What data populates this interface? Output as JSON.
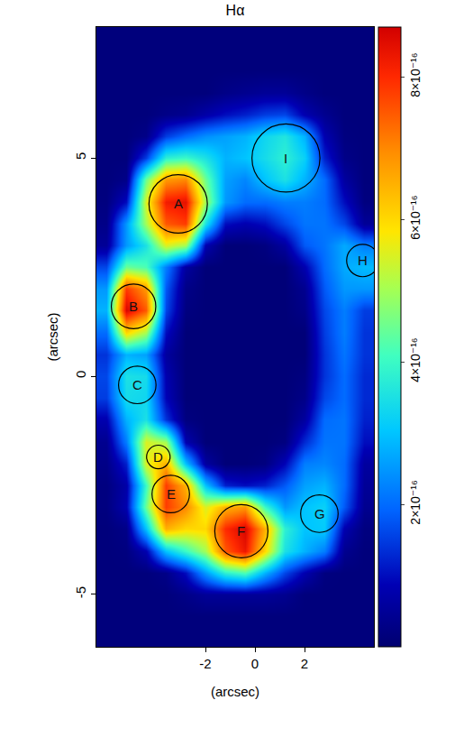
{
  "chart_data": {
    "type": "heatmap",
    "title": "Hα",
    "x_label": "(arcsec)",
    "y_label": "(arcsec)",
    "grid": false,
    "x": [
      -6.0,
      -5.2,
      -4.4,
      -3.6,
      -2.8,
      -2.0,
      -1.2,
      -0.4,
      0.4,
      1.2,
      2.0,
      2.8,
      3.6,
      4.4
    ],
    "y": [
      -6.0,
      -5.5,
      -5.0,
      -4.5,
      -4.0,
      -3.5,
      -3.0,
      -2.5,
      -2.0,
      -1.5,
      -1.0,
      -0.5,
      0.0,
      0.5,
      1.0,
      1.5,
      2.0,
      2.5,
      3.0,
      3.5,
      4.0,
      4.5,
      5.0,
      5.5,
      6.0,
      6.5,
      7.0,
      7.5,
      8.0
    ],
    "z": [
      [
        1.5e-17,
        1.5e-17,
        1.5e-17,
        1.5e-17,
        1.5e-17,
        1.5e-17,
        1.5e-17,
        1.5e-17,
        1.5e-17,
        1.5e-17,
        1.5e-17,
        1.5e-17,
        1.5e-17,
        1.5e-17
      ],
      [
        1.5e-17,
        1.5e-17,
        1.5e-17,
        1.5e-17,
        1.5e-17,
        1.5e-17,
        1.5e-17,
        1.5e-17,
        1.5e-17,
        1.5e-17,
        1.5e-17,
        1.5e-17,
        1.5e-17,
        1.5e-17
      ],
      [
        1.5e-17,
        1.5e-17,
        1.5e-17,
        1.5e-17,
        3e-17,
        5e-17,
        5e-17,
        5e-17,
        5e-17,
        4e-17,
        1.5e-17,
        1.5e-17,
        1.5e-17,
        1.5e-17
      ],
      [
        1.5e-17,
        1.5e-17,
        1.5e-17,
        3e-17,
        1e-16,
        2.5e-16,
        3.8e-16,
        4.2e-16,
        2.8e-16,
        1.6e-16,
        8e-17,
        2e-17,
        1.5e-17,
        1.5e-17
      ],
      [
        1.5e-17,
        2e-17,
        8e-17,
        3e-16,
        4e-16,
        5e-16,
        7.5e-16,
        8.3e-16,
        6e-16,
        3.5e-16,
        2.8e-16,
        2.2e-16,
        4e-17,
        1.5e-17
      ],
      [
        1.5e-17,
        3e-17,
        3e-16,
        6.5e-16,
        6e-16,
        6e-16,
        8e-16,
        8.6e-16,
        6.5e-16,
        3.8e-16,
        3e-16,
        3.1e-16,
        8e-17,
        2e-17
      ],
      [
        2e-17,
        8e-17,
        4.5e-16,
        7.8e-16,
        7e-16,
        5.5e-16,
        6.5e-16,
        6.8e-16,
        4e-16,
        2.5e-16,
        3e-16,
        3.2e-16,
        1.8e-16,
        4e-17
      ],
      [
        2e-17,
        7e-17,
        4e-16,
        7.8e-16,
        6.5e-16,
        3e-16,
        1.2e-16,
        1e-16,
        1.2e-16,
        1.8e-16,
        2.6e-16,
        2.8e-16,
        2e-16,
        5e-17
      ],
      [
        3e-17,
        1.2e-16,
        5.5e-16,
        6.5e-16,
        3e-16,
        6e-17,
        1e-17,
        1e-17,
        2e-17,
        9e-17,
        2.2e-16,
        2.3e-16,
        2e-16,
        6e-17
      ],
      [
        4e-17,
        2.2e-16,
        5.5e-16,
        5e-16,
        8e-17,
        1e-17,
        1e-17,
        1e-17,
        1e-17,
        2e-17,
        1.3e-16,
        2.1e-16,
        2.1e-16,
        1e-16
      ],
      [
        8e-17,
        2.8e-16,
        3.5e-16,
        1.4e-16,
        2e-17,
        1e-17,
        1e-17,
        1e-17,
        1e-17,
        1e-17,
        6e-17,
        2e-16,
        2.1e-16,
        1.2e-16
      ],
      [
        1.5e-16,
        3.4e-16,
        3.3e-16,
        9e-17,
        1e-17,
        1e-17,
        1e-17,
        1e-17,
        1e-17,
        1e-17,
        3e-17,
        1.6e-16,
        2e-16,
        1.3e-16
      ],
      [
        1.6e-16,
        3.5e-16,
        3.4e-16,
        8e-17,
        1e-17,
        1e-17,
        1e-17,
        1e-17,
        1e-17,
        1e-17,
        2e-17,
        1.4e-16,
        2e-16,
        1.3e-16
      ],
      [
        1.4e-16,
        2.8e-16,
        2.6e-16,
        6e-17,
        1e-17,
        1e-17,
        1e-17,
        1e-17,
        1e-17,
        1e-17,
        1e-17,
        1.4e-16,
        2.1e-16,
        1.4e-16
      ],
      [
        2e-16,
        6e-16,
        5e-16,
        1e-16,
        1e-17,
        1e-17,
        1e-17,
        1e-17,
        1e-17,
        1e-17,
        1e-17,
        1.5e-16,
        2.2e-16,
        1.4e-16
      ],
      [
        2.8e-16,
        8.6e-16,
        7.5e-16,
        1.6e-16,
        2e-17,
        1e-17,
        1e-17,
        1e-17,
        1e-17,
        1e-17,
        3e-17,
        1.6e-16,
        2.2e-16,
        1.5e-16
      ],
      [
        2.5e-16,
        7.8e-16,
        6.8e-16,
        1.8e-16,
        3e-17,
        1e-17,
        1e-17,
        1e-17,
        1e-17,
        1e-17,
        4e-17,
        1.8e-16,
        2.5e-16,
        2.5e-16
      ],
      [
        1.6e-16,
        4.5e-16,
        4.2e-16,
        2.2e-16,
        6e-17,
        1e-17,
        1e-17,
        1e-17,
        1e-17,
        1e-17,
        8e-17,
        2e-16,
        2.7e-16,
        2.9e-16
      ],
      [
        5e-17,
        2.5e-16,
        3.5e-16,
        5.5e-16,
        5e-16,
        8e-17,
        1e-17,
        1e-17,
        2e-17,
        6e-17,
        1.8e-16,
        2.1e-16,
        2.7e-16,
        2.2e-16
      ],
      [
        3e-17,
        2.5e-16,
        5e-16,
        7.5e-16,
        7.8e-16,
        3.5e-16,
        1e-16,
        8e-17,
        1e-16,
        1.6e-16,
        2.1e-16,
        2.1e-16,
        1.6e-16,
        5e-17
      ],
      [
        2e-17,
        1e-16,
        5.5e-16,
        8.2e-16,
        8.4e-16,
        5e-16,
        2.5e-16,
        2e-16,
        2e-16,
        2.2e-16,
        2.2e-16,
        2e-16,
        1e-16,
        2e-17
      ],
      [
        1.5e-17,
        3e-17,
        4.5e-16,
        6.8e-16,
        7e-16,
        4.5e-16,
        2.6e-16,
        2.3e-16,
        3e-16,
        3.5e-16,
        2.8e-16,
        2e-16,
        6e-17,
        1.5e-17
      ],
      [
        1.5e-17,
        1.5e-17,
        1.5e-16,
        3.8e-16,
        4e-16,
        3.5e-16,
        2.8e-16,
        3e-16,
        3.4e-16,
        3.8e-16,
        3.2e-16,
        1.2e-16,
        3e-17,
        1.5e-17
      ],
      [
        1.5e-17,
        1.5e-17,
        3e-17,
        1.5e-16,
        2e-16,
        2.4e-16,
        2.6e-16,
        2.8e-16,
        3.3e-16,
        3.6e-16,
        2.8e-16,
        8e-17,
        2e-17,
        1.5e-17
      ],
      [
        1.5e-17,
        1.5e-17,
        1.5e-17,
        3e-17,
        4e-17,
        7e-17,
        1e-16,
        1.2e-16,
        1.5e-16,
        1.6e-16,
        8e-17,
        4e-17,
        1.5e-17,
        1.5e-17
      ],
      [
        1.5e-17,
        1.5e-17,
        1.5e-17,
        1.5e-17,
        1.5e-17,
        1.5e-17,
        3e-17,
        4e-17,
        5e-17,
        5e-17,
        3e-17,
        1.5e-17,
        1.5e-17,
        1.5e-17
      ],
      [
        1.5e-17,
        1.5e-17,
        1.5e-17,
        1.5e-17,
        1.5e-17,
        1.5e-17,
        1.5e-17,
        1.5e-17,
        1.5e-17,
        1.5e-17,
        1.5e-17,
        1.5e-17,
        1.5e-17,
        1.5e-17
      ],
      [
        1.5e-17,
        1.5e-17,
        1.5e-17,
        1.5e-17,
        1.5e-17,
        1.5e-17,
        1.5e-17,
        1.5e-17,
        1.5e-17,
        1.5e-17,
        1.5e-17,
        1.5e-17,
        1.5e-17,
        1.5e-17
      ],
      [
        1.5e-17,
        1.5e-17,
        1.5e-17,
        1.5e-17,
        1.5e-17,
        1.5e-17,
        1.5e-17,
        1.5e-17,
        1.5e-17,
        1.5e-17,
        1.5e-17,
        1.5e-17,
        1.5e-17,
        1.5e-17
      ]
    ],
    "xlim": [
      -6.4,
      4.8
    ],
    "ylim": [
      -6.2,
      8.0
    ],
    "xticks": [
      -2,
      0,
      2
    ],
    "yticks": [
      -5,
      0,
      5
    ],
    "colorbar": {
      "range": [
        0,
        8.7e-16
      ],
      "ticks": [
        {
          "value": 2e-16,
          "label": "2×10⁻¹⁶"
        },
        {
          "value": 4e-16,
          "label": "4×10⁻¹⁶"
        },
        {
          "value": 6e-16,
          "label": "6×10⁻¹⁶"
        },
        {
          "value": 8e-16,
          "label": "8×10⁻¹⁶"
        }
      ]
    },
    "apertures": [
      {
        "label": "A",
        "x": -3.1,
        "y": 3.95,
        "r": 0.67
      },
      {
        "label": "B",
        "x": -4.9,
        "y": 1.6,
        "r": 0.51
      },
      {
        "label": "C",
        "x": -4.75,
        "y": -0.2,
        "r": 0.43
      },
      {
        "label": "D",
        "x": -3.9,
        "y": -1.85,
        "r": 0.27
      },
      {
        "label": "E",
        "x": -3.4,
        "y": -2.7,
        "r": 0.43
      },
      {
        "label": "F",
        "x": -0.55,
        "y": -3.55,
        "r": 0.61
      },
      {
        "label": "G",
        "x": 2.6,
        "y": -3.15,
        "r": 0.43
      },
      {
        "label": "H",
        "x": 4.35,
        "y": 2.65,
        "r": 0.37
      },
      {
        "label": "I",
        "x": 1.25,
        "y": 5.0,
        "r": 0.78
      }
    ]
  }
}
